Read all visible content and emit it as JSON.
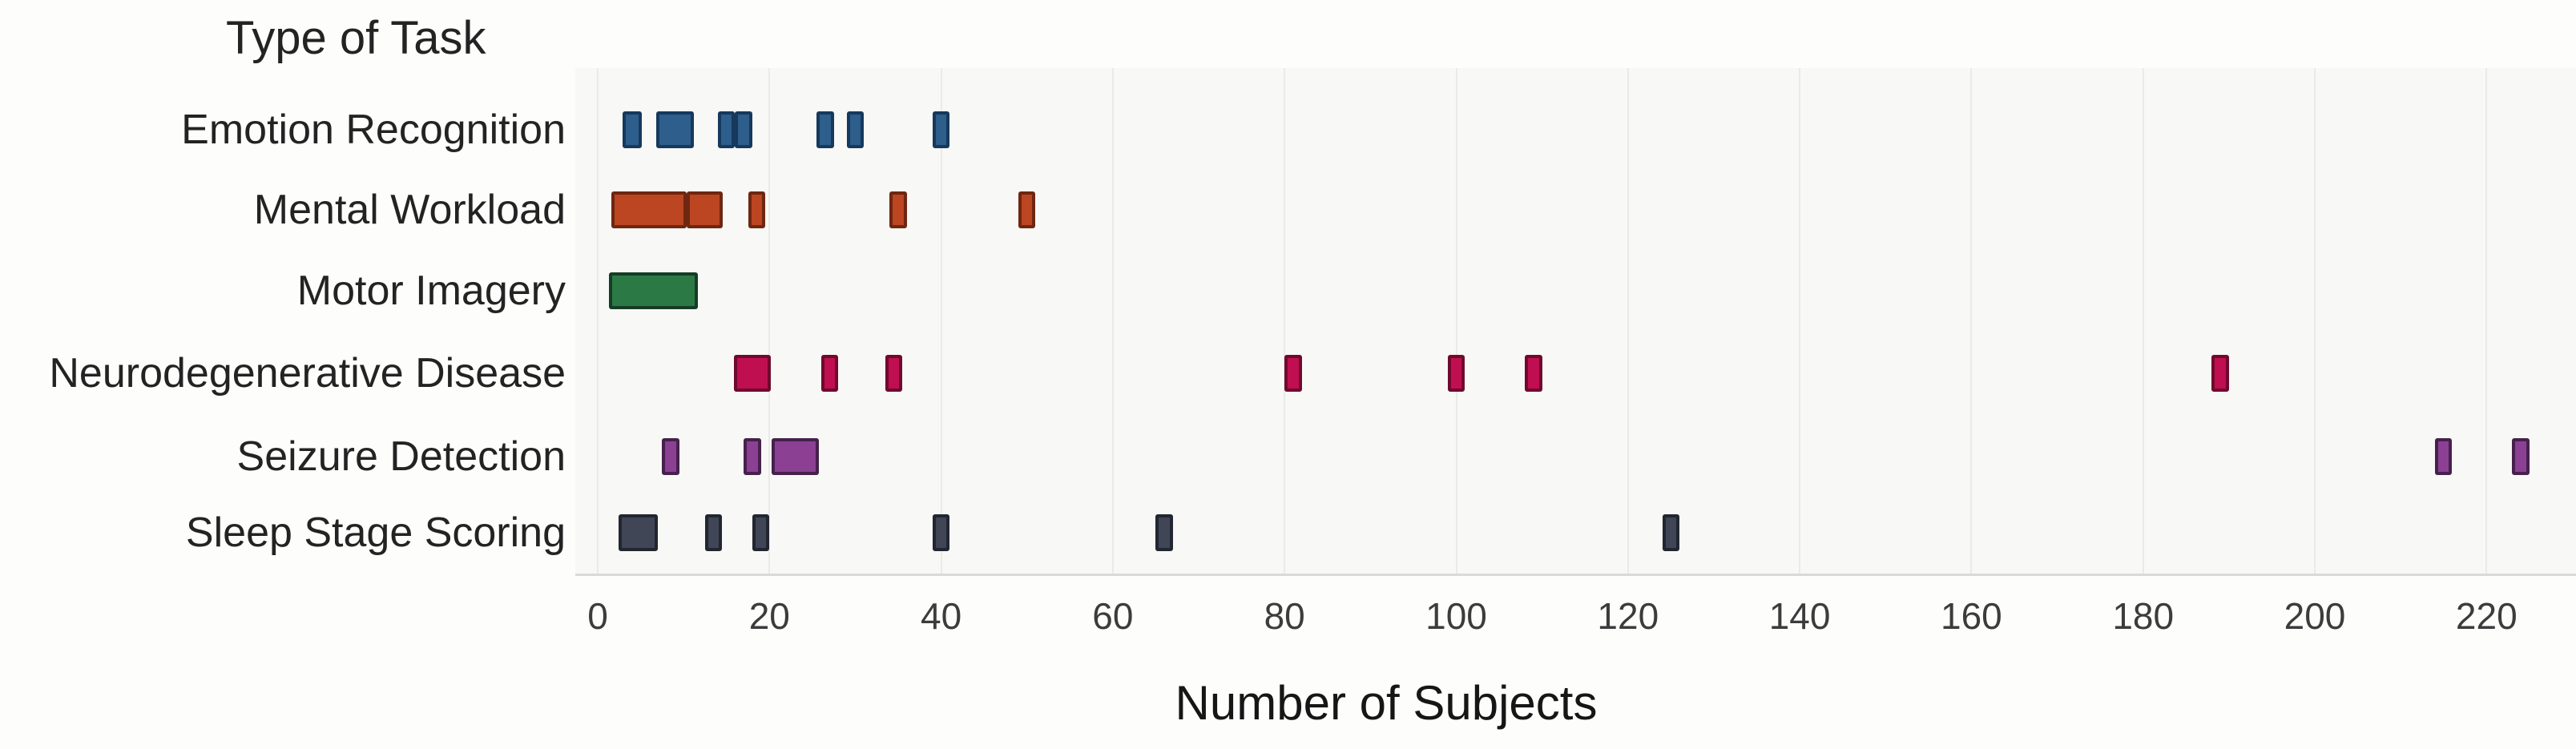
{
  "chart_data": {
    "type": "scatter",
    "subtype": "strip-plot-square-marks",
    "title": "Type of Task",
    "xlabel": "Number of Subjects",
    "x_ticks": [
      0,
      20,
      40,
      60,
      80,
      100,
      120,
      140,
      160,
      180,
      200,
      220
    ],
    "xlim": [
      -2.6,
      230.4
    ],
    "grid": "vertical-only",
    "legend": "none",
    "categories": [
      "Emotion Recognition",
      "Mental Workload",
      "Motor Imagery",
      "Neurodegenerative Disease",
      "Seizure Detection",
      "Sleep Stage Scoring"
    ],
    "series": [
      {
        "name": "Emotion Recognition",
        "color": "#2d5e8c",
        "border_color": "#16395c",
        "marks": [
          {
            "x": 4,
            "w": 2.2
          },
          {
            "x": 9,
            "w": 4.4
          },
          {
            "x": 15,
            "w": 2
          },
          {
            "x": 17,
            "w": 2
          },
          {
            "x": 26.5,
            "w": 2
          },
          {
            "x": 30,
            "w": 2
          },
          {
            "x": 40,
            "w": 2
          }
        ]
      },
      {
        "name": "Mental Workload",
        "color": "#bc4522",
        "border_color": "#6e2711",
        "marks": [
          {
            "x": 6,
            "w": 8.8
          },
          {
            "x": 12.5,
            "w": 4.2
          },
          {
            "x": 18.5,
            "w": 2
          },
          {
            "x": 35,
            "w": 2
          },
          {
            "x": 50,
            "w": 2
          }
        ]
      },
      {
        "name": "Motor Imagery",
        "color": "#2b7a46",
        "border_color": "#143d25",
        "marks": [
          {
            "x": 6.5,
            "w": 10.4
          }
        ]
      },
      {
        "name": "Neurodegenerative Disease",
        "color": "#c00f50",
        "border_color": "#70092f",
        "marks": [
          {
            "x": 18,
            "w": 4.3
          },
          {
            "x": 27,
            "w": 2
          },
          {
            "x": 34.5,
            "w": 2
          },
          {
            "x": 81,
            "w": 2
          },
          {
            "x": 100,
            "w": 2
          },
          {
            "x": 109,
            "w": 2
          },
          {
            "x": 189,
            "w": 2
          }
        ]
      },
      {
        "name": "Seizure Detection",
        "color": "#8b4094",
        "border_color": "#46214c",
        "marks": [
          {
            "x": 8.5,
            "w": 2
          },
          {
            "x": 18,
            "w": 2
          },
          {
            "x": 23,
            "w": 5.5
          },
          {
            "x": 215,
            "w": 2
          },
          {
            "x": 224,
            "w": 2
          }
        ]
      },
      {
        "name": "Sleep Stage Scoring",
        "color": "#404656",
        "border_color": "#222630",
        "marks": [
          {
            "x": 4.7,
            "w": 4.6
          },
          {
            "x": 13.5,
            "w": 2
          },
          {
            "x": 19,
            "w": 2
          },
          {
            "x": 40,
            "w": 2
          },
          {
            "x": 66,
            "w": 2
          },
          {
            "x": 125,
            "w": 2
          }
        ]
      }
    ]
  }
}
